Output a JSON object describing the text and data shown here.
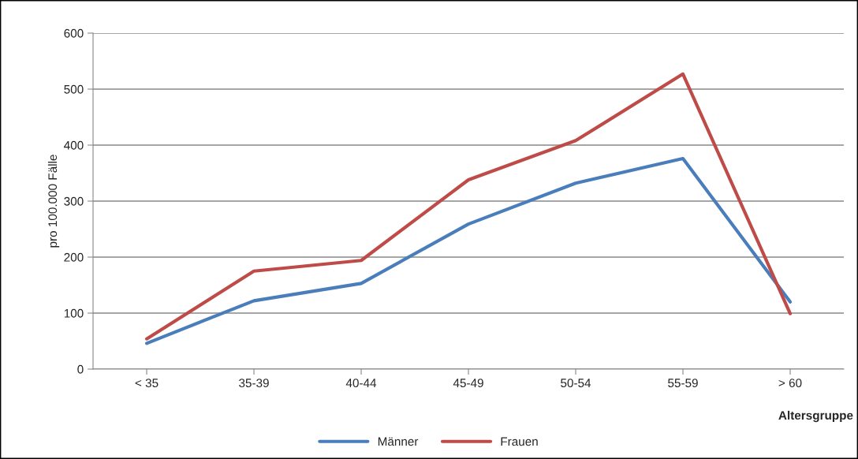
{
  "chart_data": {
    "type": "line",
    "ylabel": "pro 100.000 Fälle",
    "xlabel": "Altersgruppe",
    "categories": [
      "< 35",
      "35-39",
      "40-44",
      "45-49",
      "50-54",
      "55-59",
      "> 60"
    ],
    "series": [
      {
        "name": "Männer",
        "color": "#4a7ebb",
        "values": [
          46,
          122,
          153,
          259,
          332,
          376,
          120
        ]
      },
      {
        "name": "Frauen",
        "color": "#be4b48",
        "values": [
          54,
          175,
          194,
          338,
          408,
          527,
          99
        ]
      }
    ],
    "ylim": [
      0,
      600
    ],
    "yticks": [
      0,
      100,
      200,
      300,
      400,
      500,
      600
    ],
    "grid": "y",
    "legend": "bottom",
    "marker": "none",
    "line_style": "solid"
  }
}
